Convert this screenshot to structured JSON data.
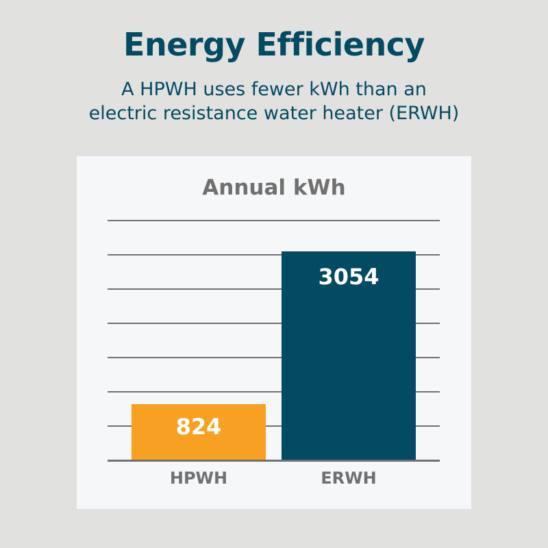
{
  "header": {
    "title": "Energy Efficiency",
    "subtitle_line1": "A HPWH uses fewer kWh than an",
    "subtitle_line2": "electric resistance water heater (ERWH)"
  },
  "colors": {
    "background": "#e1e1df",
    "panel": "#f6f7f9",
    "title": "#034a63",
    "hpwh_bar": "#f7a021",
    "erwh_bar": "#034a63",
    "gridline": "#6e7073",
    "label_gray": "#707070"
  },
  "chart_data": {
    "type": "bar",
    "title": "Annual kWh",
    "categories": [
      "HPWH",
      "ERWH"
    ],
    "values": [
      824,
      3054
    ],
    "series": [
      {
        "name": "Annual kWh",
        "values": [
          824,
          3054
        ]
      }
    ],
    "bar_colors": [
      "#f7a021",
      "#034a63"
    ],
    "data_labels": [
      "824",
      "3054"
    ],
    "xlabel": "",
    "ylabel": "",
    "ylim": [
      0,
      3500
    ],
    "gridlines": [
      500,
      1000,
      1500,
      2000,
      2500,
      3000,
      3500
    ],
    "grid": true,
    "y_tick_labels_shown": false,
    "legend": "none"
  }
}
